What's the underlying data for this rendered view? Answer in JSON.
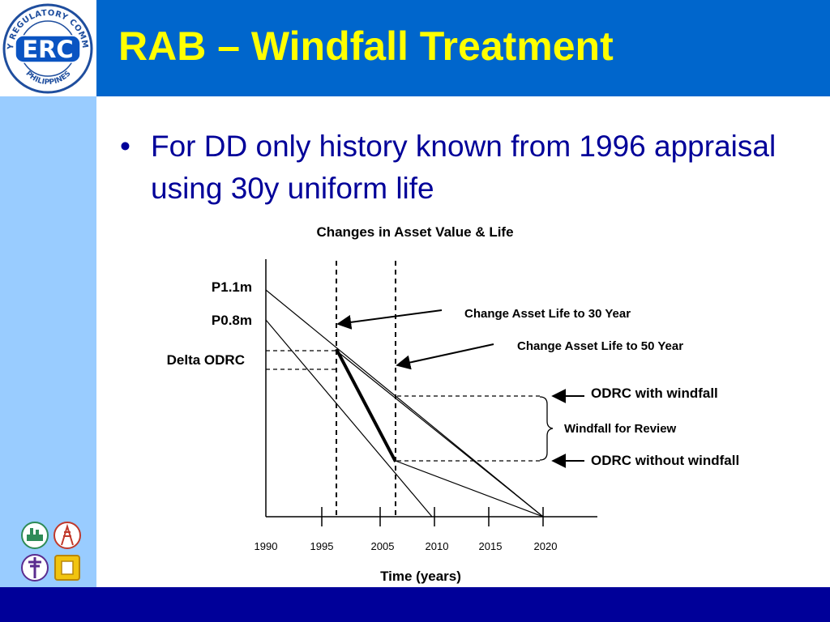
{
  "slide": {
    "title": "RAB – Windfall Treatment",
    "bullet_text": "For DD only history known from 1996 appraisal using 30y uniform life"
  },
  "logo": {
    "abbreviation": "ERC",
    "ring_text": "ENERGY REGULATORY COMMISSION",
    "country": "PHILIPPINES"
  },
  "diagram": {
    "title": "Changes in Asset Value & Life",
    "xlabel": "Time (years)",
    "x_ticks": [
      "1990",
      "1995",
      "2005",
      "2010",
      "2015",
      "2020"
    ],
    "value_labels": {
      "p1": "P1.1m",
      "p2": "P0.8m",
      "delta": "Delta ODRC"
    },
    "annotations": {
      "life30": "Change Asset Life to 30 Year",
      "life50": "Change Asset Life to 50 Year",
      "with_windfall": "ODRC with windfall",
      "windfall_review": "Windfall for Review",
      "without_windfall": "ODRC without windfall"
    }
  },
  "colors": {
    "header": "#0066cc",
    "title_text": "#ffff00",
    "sidebar": "#99ccff",
    "footer": "#000099",
    "bullet_text": "#000099"
  }
}
